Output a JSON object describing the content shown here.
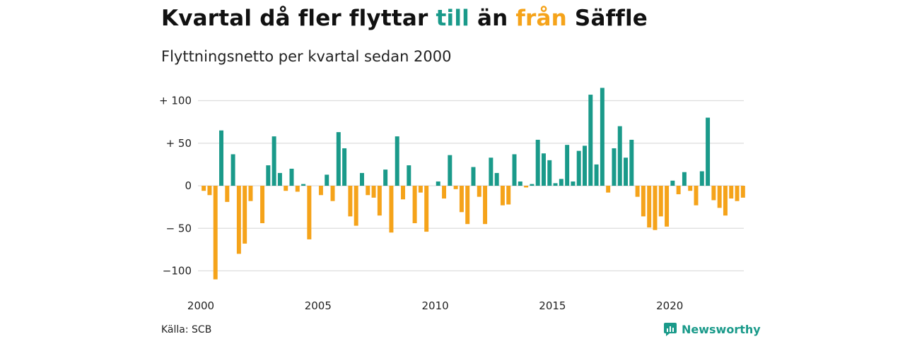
{
  "title_parts": {
    "a": "Kvartal då fler flyttar ",
    "till": "till",
    "b": " än ",
    "fran": "från",
    "c": " Säffle"
  },
  "subtitle": "Flyttningsnetto per kvartal sedan 2000",
  "source": "Källa: SCB",
  "brand": "Newsworthy",
  "colors": {
    "positive": "#1a9a8a",
    "negative": "#f5a31a",
    "grid": "#dddddd"
  },
  "chart_data": {
    "type": "bar",
    "title": "Kvartal då fler flyttar till än från Säffle",
    "subtitle": "Flyttningsnetto per kvartal sedan 2000",
    "x_start": 2000.0,
    "x_step": 0.25,
    "xlim": [
      2000,
      2023.1
    ],
    "ylim": [
      -115,
      120
    ],
    "y_ticks": [
      100,
      50,
      0,
      -50,
      -100
    ],
    "y_tick_labels": [
      "+ 100",
      "+  50",
      "0",
      "− 50",
      "−100"
    ],
    "x_ticks": [
      2000,
      2005,
      2010,
      2015,
      2020
    ],
    "x_tick_labels": [
      "2000",
      "2005",
      "2010",
      "2015",
      "2020"
    ],
    "grid": true,
    "values": [
      -6,
      -11,
      -110,
      65,
      -19,
      37,
      -80,
      -68,
      -18,
      0,
      -44,
      24,
      58,
      15,
      -6,
      20,
      -7,
      2,
      -63,
      0,
      -11,
      13,
      -18,
      63,
      44,
      -36,
      -47,
      15,
      -11,
      -14,
      -35,
      19,
      -55,
      58,
      -16,
      24,
      -44,
      -8,
      -54,
      0,
      5,
      -15,
      36,
      -4,
      -31,
      -45,
      22,
      -13,
      -45,
      33,
      15,
      -23,
      -22,
      37,
      5,
      -2,
      2,
      54,
      38,
      30,
      3,
      8,
      48,
      5,
      41,
      47,
      107,
      25,
      115,
      -8,
      44,
      70,
      33,
      54,
      -13,
      -36,
      -49,
      -52,
      -36,
      -48,
      6,
      -10,
      16,
      -6,
      -23,
      17,
      80,
      -17,
      -26,
      -35,
      -15,
      -18,
      -14
    ]
  }
}
